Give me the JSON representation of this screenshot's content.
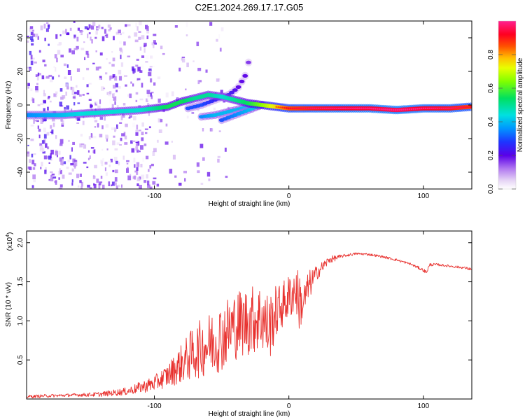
{
  "figure_title": "C2E1.2024.269.17.17.G05",
  "colors": {
    "snr_line": "#e8312e",
    "axis": "#000000",
    "background": "#ffffff"
  },
  "chart_data": [
    {
      "type": "heatmap",
      "title": "C2E1.2024.269.17.17.G05",
      "xlabel": "Height of straight line (km)",
      "ylabel": "Frequency (Hz)",
      "xlim": [
        -195,
        136
      ],
      "ylim": [
        -50,
        50
      ],
      "x_ticks": [
        -100,
        0,
        100
      ],
      "x_tick_labels": [
        "-100",
        "0",
        "100"
      ],
      "y_ticks": [
        -40,
        -20,
        0,
        20,
        40
      ],
      "y_tick_labels": [
        "-40",
        "-20",
        "0",
        "20",
        "40"
      ],
      "colorbar": {
        "label": "Normalized spectral amplitude",
        "range": [
          0,
          1
        ],
        "ticks": [
          0.0,
          0.2,
          0.4,
          0.6,
          0.8
        ],
        "tick_labels": [
          "0.0",
          "0.2",
          "0.4",
          "0.6",
          "0.8"
        ]
      },
      "main_trace": {
        "name": "dominant Doppler trace",
        "x": [
          -195,
          -170,
          -150,
          -130,
          -110,
          -100,
          -90,
          -80,
          -70,
          -60,
          -50,
          -40,
          -30,
          -20,
          -10,
          0,
          20,
          40,
          60,
          80,
          100,
          120,
          136
        ],
        "y": [
          -6,
          -6,
          -5,
          -4,
          -3,
          -2,
          -1,
          2,
          4,
          6,
          5,
          3,
          1,
          0,
          -1,
          -2,
          -2,
          -2,
          -2,
          -3,
          -2,
          -2,
          -1
        ],
        "amplitude": [
          0.35,
          0.4,
          0.45,
          0.45,
          0.45,
          0.5,
          0.55,
          0.55,
          0.5,
          0.5,
          0.45,
          0.5,
          0.55,
          0.65,
          0.75,
          0.85,
          0.9,
          0.92,
          0.93,
          0.95,
          0.92,
          0.9,
          0.85
        ]
      },
      "secondary_traces": [
        {
          "name": "upward branch",
          "x": [
            -75,
            -65,
            -55,
            -45,
            -38,
            -32,
            -29
          ],
          "y": [
            -2,
            0,
            3,
            6,
            10,
            18,
            29
          ],
          "amplitude": [
            0.3,
            0.3,
            0.25,
            0.25,
            0.2,
            0.2,
            0.15
          ]
        },
        {
          "name": "lower branch",
          "x": [
            -65,
            -55,
            -45,
            -35,
            -25
          ],
          "y": [
            -7,
            -6,
            -4,
            -2,
            0
          ],
          "amplitude": [
            0.35,
            0.4,
            0.4,
            0.4,
            0.45
          ]
        },
        {
          "name": "middle branch",
          "x": [
            -50,
            -40,
            -30,
            -20
          ],
          "y": [
            -9,
            -6,
            -3,
            0
          ],
          "amplitude": [
            0.3,
            0.35,
            0.4,
            0.45
          ]
        }
      ]
    },
    {
      "type": "line",
      "title": "",
      "xlabel": "Height of straight line (km)",
      "ylabel": "SNR (10 * v/v)",
      "y_scale_label": "(x10",
      "y_scale_exponent": "4",
      "xlim": [
        -195,
        136
      ],
      "ylim": [
        0,
        2.15
      ],
      "x_ticks": [
        -100,
        0,
        100
      ],
      "x_tick_labels": [
        "-100",
        "0",
        "100"
      ],
      "y_ticks": [
        0.5,
        1.0,
        1.5,
        2.0
      ],
      "y_tick_labels": [
        "0.5",
        "1.0",
        "1.5",
        "2.0"
      ],
      "series": [
        {
          "name": "SNR",
          "x": [
            -195,
            -180,
            -160,
            -140,
            -120,
            -100,
            -90,
            -80,
            -70,
            -60,
            -50,
            -40,
            -30,
            -20,
            -15,
            -10,
            -5,
            0,
            5,
            8,
            10,
            15,
            20,
            30,
            40,
            50,
            60,
            70,
            80,
            90,
            100,
            102,
            105,
            110,
            120,
            130,
            136
          ],
          "y": [
            0.03,
            0.04,
            0.05,
            0.06,
            0.1,
            0.2,
            0.3,
            0.45,
            0.6,
            0.7,
            0.8,
            0.95,
            1.0,
            1.05,
            0.9,
            1.1,
            1.2,
            1.3,
            1.4,
            1.25,
            1.2,
            1.45,
            1.6,
            1.78,
            1.83,
            1.86,
            1.85,
            1.82,
            1.78,
            1.73,
            1.65,
            1.62,
            1.72,
            1.72,
            1.7,
            1.68,
            1.66
          ],
          "noise": [
            0.02,
            0.02,
            0.02,
            0.03,
            0.05,
            0.1,
            0.15,
            0.25,
            0.35,
            0.4,
            0.45,
            0.45,
            0.45,
            0.45,
            0.45,
            0.35,
            0.3,
            0.3,
            0.3,
            0.4,
            0.25,
            0.2,
            0.1,
            0.05,
            0.02,
            0.015,
            0.015,
            0.015,
            0.015,
            0.015,
            0.02,
            0.03,
            0.02,
            0.015,
            0.015,
            0.015,
            0.02
          ]
        }
      ]
    }
  ]
}
